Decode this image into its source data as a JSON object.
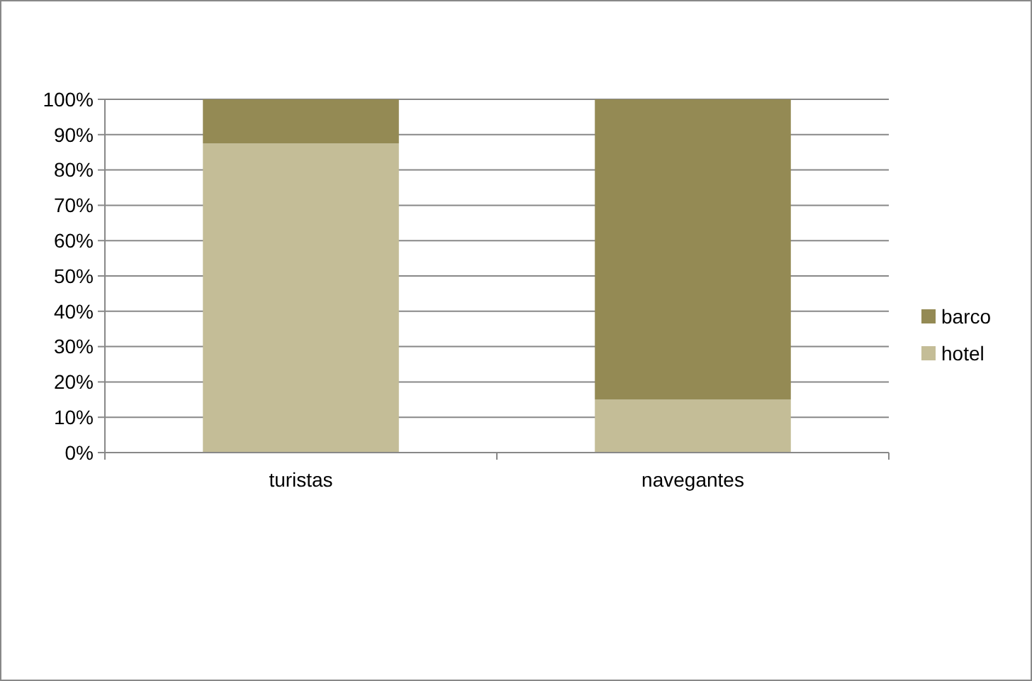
{
  "chart_data": {
    "type": "bar",
    "stacked": true,
    "categories": [
      "turistas",
      "navegantes"
    ],
    "series": [
      {
        "name": "hotel",
        "color": "#c4bd97",
        "values": [
          87.5,
          15
        ]
      },
      {
        "name": "barco",
        "color": "#948a54",
        "values": [
          12.5,
          85
        ]
      }
    ],
    "ylim": [
      0,
      100
    ],
    "yticks": [
      {
        "value": 0,
        "label": "0%"
      },
      {
        "value": 10,
        "label": "10%"
      },
      {
        "value": 20,
        "label": "20%"
      },
      {
        "value": 30,
        "label": "30%"
      },
      {
        "value": 40,
        "label": "40%"
      },
      {
        "value": 50,
        "label": "50%"
      },
      {
        "value": 60,
        "label": "60%"
      },
      {
        "value": 70,
        "label": "70%"
      },
      {
        "value": 80,
        "label": "80%"
      },
      {
        "value": 90,
        "label": "90%"
      },
      {
        "value": 100,
        "label": "100%"
      }
    ],
    "grid": "y",
    "legend": "right"
  }
}
